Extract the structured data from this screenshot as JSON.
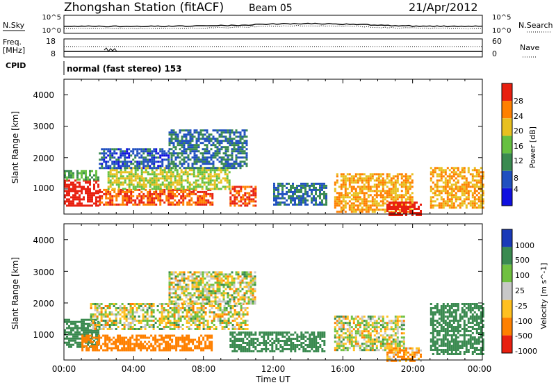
{
  "header": {
    "station": "Zhongshan Station (fitACF)",
    "beam": "Beam 05",
    "date": "21/Apr/2012"
  },
  "nsky_panel": {
    "left_label": "N.Sky",
    "left_ticks": [
      "10^5",
      "10^0"
    ],
    "right_ticks": [
      "10^5",
      "10^0"
    ],
    "right_label": "N.Search"
  },
  "freq_panel": {
    "left_label_top": "Freq.",
    "left_label_unit": "[MHz]",
    "left_ticks": [
      "18",
      "8"
    ],
    "right_ticks": [
      "60",
      "0"
    ],
    "right_label": "Nave"
  },
  "cpid": {
    "label": "CPID",
    "text": "normal (fast stereo) 153"
  },
  "time_axis": {
    "label": "Time UT",
    "ticks": [
      "00:00",
      "04:00",
      "08:00",
      "12:00",
      "16:00",
      "20:00",
      "00:00"
    ]
  },
  "chart_data": [
    {
      "type": "heatmap",
      "panel": "power",
      "ylabel": "Slant Range [km]",
      "yticks": [
        "1000",
        "2000",
        "3000",
        "4000"
      ],
      "ylim": [
        200,
        4500
      ],
      "xlim_hours": [
        0,
        24
      ],
      "colorbar": {
        "label": "Power [dB]",
        "tick_labels": [
          "4",
          "8",
          "12",
          "16",
          "20",
          "24",
          "28"
        ],
        "colors": [
          "#1010e0",
          "#2050c0",
          "#3a8a50",
          "#66c040",
          "#e8c020",
          "#ff8000",
          "#e82010"
        ]
      },
      "regions": [
        {
          "t": [
            0.0,
            2.0
          ],
          "range_km": [
            500,
            1300
          ],
          "power_db": 28
        },
        {
          "t": [
            0.0,
            2.0
          ],
          "range_km": [
            1300,
            1600
          ],
          "power_db": 12
        },
        {
          "t": [
            2.0,
            8.5
          ],
          "range_km": [
            500,
            1000
          ],
          "power_db": 24
        },
        {
          "t": [
            2.5,
            9.5
          ],
          "range_km": [
            1000,
            1700
          ],
          "power_db": 16
        },
        {
          "t": [
            2.0,
            6.0
          ],
          "range_km": [
            1700,
            2300
          ],
          "power_db": 6
        },
        {
          "t": [
            6.0,
            10.5
          ],
          "range_km": [
            1700,
            2900
          ],
          "power_db": 8
        },
        {
          "t": [
            9.5,
            11.0
          ],
          "range_km": [
            500,
            1100
          ],
          "power_db": 24
        },
        {
          "t": [
            12.0,
            15.0
          ],
          "range_km": [
            500,
            1200
          ],
          "power_db": 8
        },
        {
          "t": [
            15.5,
            20.0
          ],
          "range_km": [
            300,
            1500
          ],
          "power_db": 20
        },
        {
          "t": [
            18.5,
            20.5
          ],
          "range_km": [
            200,
            600
          ],
          "power_db": 28
        },
        {
          "t": [
            21.0,
            24.0
          ],
          "range_km": [
            400,
            1700
          ],
          "power_db": 20
        }
      ]
    },
    {
      "type": "heatmap",
      "panel": "velocity",
      "ylabel": "Slant Range [km]",
      "yticks": [
        "1000",
        "2000",
        "3000",
        "4000"
      ],
      "ylim": [
        200,
        4500
      ],
      "xlim_hours": [
        0,
        24
      ],
      "colorbar": {
        "label": "Velocity [m s^-1]",
        "tick_labels": [
          "1000",
          "500",
          "100",
          "25",
          "-25",
          "-100",
          "-500",
          "-1000"
        ],
        "colors": [
          "#1a3ab8",
          "#3a8a50",
          "#70c040",
          "#c8c8c8",
          "#ffc020",
          "#ff8000",
          "#e82010"
        ]
      },
      "regions": [
        {
          "t": [
            0.0,
            2.0
          ],
          "range_km": [
            600,
            1500
          ],
          "velocity_ms": 300
        },
        {
          "t": [
            1.0,
            8.5
          ],
          "range_km": [
            500,
            1000
          ],
          "velocity_ms": -300
        },
        {
          "t": [
            1.5,
            10.5
          ],
          "range_km": [
            1200,
            2000
          ],
          "velocity_ms": 0
        },
        {
          "t": [
            6.0,
            11.0
          ],
          "range_km": [
            2000,
            3000
          ],
          "velocity_ms": 0
        },
        {
          "t": [
            9.5,
            15.0
          ],
          "range_km": [
            500,
            1100
          ],
          "velocity_ms": 300
        },
        {
          "t": [
            15.5,
            19.5
          ],
          "range_km": [
            500,
            1600
          ],
          "velocity_ms": 0
        },
        {
          "t": [
            18.5,
            20.5
          ],
          "range_km": [
            200,
            600
          ],
          "velocity_ms": -100
        },
        {
          "t": [
            21.0,
            24.0
          ],
          "range_km": [
            400,
            2000
          ],
          "velocity_ms": 300
        }
      ]
    }
  ]
}
